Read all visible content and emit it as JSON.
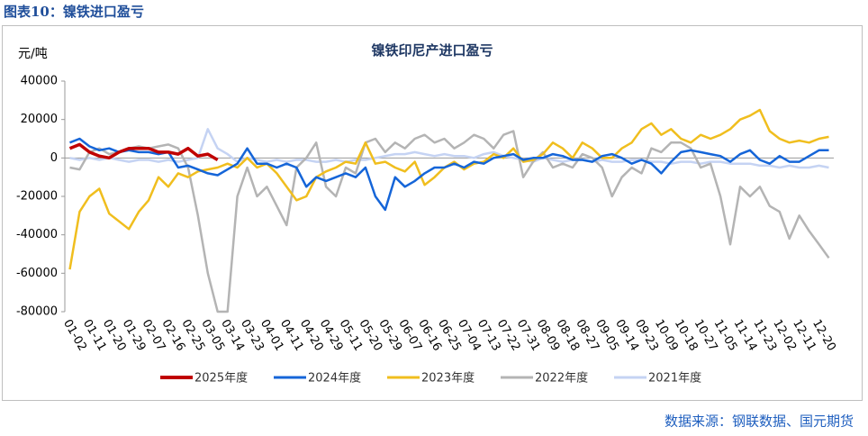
{
  "header": {
    "title": "图表10：镍铁进口盈亏"
  },
  "source": "数据来源：钢联数据、国元期货",
  "chart_data": {
    "type": "line",
    "title": "镍铁印尼产进口盈亏",
    "y_label": "元/吨",
    "categories": [
      "01-02",
      null,
      "01-11",
      null,
      "01-20",
      null,
      "01-29",
      null,
      "02-07",
      null,
      "02-16",
      null,
      "02-25",
      null,
      "03-05",
      null,
      "03-14",
      null,
      "03-23",
      null,
      "04-01",
      null,
      "04-11",
      null,
      "04-20",
      null,
      "04-29",
      null,
      "05-11",
      null,
      "05-20",
      null,
      "05-29",
      null,
      "06-07",
      null,
      "06-16",
      null,
      "06-25",
      null,
      "07-04",
      null,
      "07-13",
      null,
      "07-22",
      null,
      "07-31",
      null,
      "08-09",
      null,
      "08-18",
      null,
      "08-27",
      null,
      "09-05",
      null,
      "09-14",
      null,
      "09-23",
      null,
      "10-09",
      null,
      "10-18",
      null,
      "10-27",
      null,
      "11-05",
      null,
      "11-14",
      null,
      "11-23",
      null,
      "12-02",
      null,
      "12-11",
      null,
      "12-20",
      null
    ],
    "ylim": [
      -80000,
      40000
    ],
    "yticks": [
      -80000,
      -60000,
      -40000,
      -20000,
      0,
      20000,
      40000
    ],
    "series": [
      {
        "name": "2025年度",
        "color": "#c00000",
        "values": [
          5000,
          7000,
          3000,
          1000,
          0,
          3000,
          5000,
          5000,
          5000,
          3000,
          3000,
          2000,
          5000,
          1000,
          2000,
          -1000,
          null,
          null,
          null,
          null,
          null,
          null,
          null,
          null,
          null,
          null,
          null,
          null,
          null,
          null,
          null,
          null,
          null,
          null,
          null,
          null,
          null,
          null,
          null,
          null,
          null,
          null,
          null,
          null,
          null,
          null,
          null,
          null,
          null,
          null,
          null,
          null,
          null,
          null,
          null,
          null,
          null,
          null,
          null,
          null,
          null,
          null,
          null,
          null,
          null,
          null,
          null,
          null,
          null,
          null,
          null,
          null,
          null,
          null,
          null,
          null,
          null,
          null
        ]
      },
      {
        "name": "2024年度",
        "color": "#1565d8",
        "values": [
          8000,
          10000,
          6000,
          4000,
          5000,
          3000,
          4000,
          3000,
          3000,
          2000,
          3000,
          -5000,
          -4000,
          -6000,
          -8000,
          -9000,
          -6000,
          -3000,
          5000,
          -3000,
          -3000,
          -5000,
          -3000,
          -5000,
          -15000,
          -10000,
          -12000,
          -10000,
          -8000,
          -10000,
          -5000,
          -20000,
          -27000,
          -10000,
          -15000,
          -12000,
          -8000,
          -5000,
          -5000,
          -3000,
          -5000,
          -2000,
          -3000,
          0,
          1000,
          2000,
          -1000,
          0,
          0,
          2000,
          1000,
          -1000,
          -1000,
          -2000,
          1000,
          2000,
          0,
          -3000,
          -1000,
          -3000,
          -8000,
          -2000,
          3000,
          4000,
          3000,
          2000,
          1000,
          -2000,
          2000,
          4000,
          -1000,
          -3000,
          1000,
          -2000,
          -2000,
          1000,
          4000,
          4000
        ]
      },
      {
        "name": "2023年度",
        "color": "#f0be1e",
        "values": [
          -58000,
          -28000,
          -20000,
          -16000,
          -29000,
          -33000,
          -37000,
          -28000,
          -22000,
          -10000,
          -15000,
          -8000,
          -10000,
          -7000,
          -6000,
          -5000,
          -3000,
          -5000,
          0,
          -5000,
          -3000,
          -8000,
          -15000,
          -22000,
          -20000,
          -10000,
          -7000,
          -5000,
          -2000,
          -3000,
          8000,
          -3000,
          -2000,
          -5000,
          -7000,
          -2000,
          -14000,
          -10000,
          -5000,
          -2000,
          -6000,
          -3000,
          -2000,
          2000,
          0,
          5000,
          -2000,
          -1000,
          2000,
          8000,
          5000,
          0,
          8000,
          5000,
          0,
          0,
          5000,
          8000,
          15000,
          18000,
          12000,
          15000,
          10000,
          8000,
          12000,
          10000,
          12000,
          15000,
          20000,
          22000,
          25000,
          14000,
          10000,
          8000,
          9000,
          8000,
          10000,
          11000
        ]
      },
      {
        "name": "2022年度",
        "color": "#b4b4b4",
        "values": [
          -5000,
          -6000,
          3000,
          5000,
          2000,
          3000,
          5000,
          6000,
          5000,
          6000,
          7000,
          5000,
          -5000,
          -30000,
          -60000,
          -80000,
          -80000,
          -20000,
          -5000,
          -20000,
          -15000,
          -25000,
          -35000,
          -5000,
          0,
          8000,
          -15000,
          -20000,
          -5000,
          -8000,
          8000,
          10000,
          3000,
          8000,
          5000,
          10000,
          12000,
          8000,
          10000,
          5000,
          8000,
          12000,
          10000,
          5000,
          12000,
          14000,
          -10000,
          -2000,
          3000,
          -5000,
          -3000,
          -5000,
          2000,
          0,
          -5000,
          -20000,
          -10000,
          -5000,
          -8000,
          5000,
          3000,
          8000,
          8000,
          5000,
          -5000,
          -3000,
          -20000,
          -45000,
          -15000,
          -20000,
          -15000,
          -25000,
          -28000,
          -42000,
          -30000,
          -38000,
          -45000,
          -52000
        ]
      },
      {
        "name": "2021年度",
        "color": "#c5d3f3",
        "values": [
          0,
          -1000,
          0,
          -1000,
          0,
          -1000,
          -2000,
          -1000,
          -1000,
          -2000,
          -1000,
          -2000,
          -1000,
          0,
          15000,
          5000,
          2000,
          -2000,
          0,
          -1000,
          -2000,
          -1000,
          -2000,
          -1000,
          -1000,
          -2000,
          -2000,
          -1000,
          -2000,
          -1000,
          -1000,
          0,
          1000,
          2000,
          2000,
          3000,
          2000,
          1000,
          2000,
          1000,
          1000,
          0,
          2000,
          3000,
          1000,
          0,
          -1000,
          -2000,
          0,
          -1000,
          -2000,
          -1000,
          -1000,
          -2000,
          -1000,
          -2000,
          -2000,
          -1000,
          -1000,
          -2000,
          -2000,
          -3000,
          -2000,
          -2000,
          -3000,
          -2000,
          -2000,
          -3000,
          -3000,
          -3000,
          -4000,
          -4000,
          -5000,
          -4000,
          -5000,
          -5000,
          -4000,
          -5000
        ]
      }
    ]
  }
}
